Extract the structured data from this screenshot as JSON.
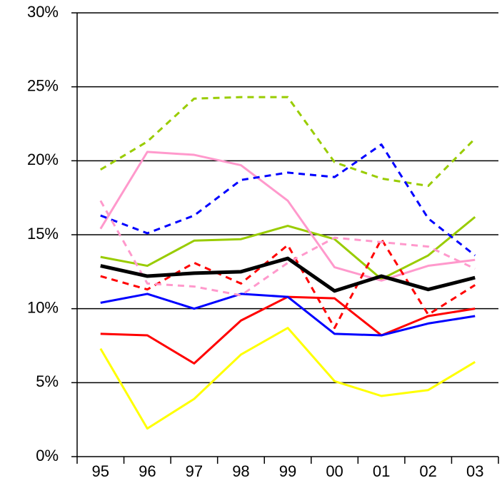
{
  "chart_data": {
    "type": "line",
    "categories": [
      "95",
      "96",
      "97",
      "98",
      "99",
      "00",
      "01",
      "02",
      "03"
    ],
    "ylim": [
      0,
      30
    ],
    "yticks": [
      {
        "value": 0,
        "label": "0%"
      },
      {
        "value": 5,
        "label": "5%"
      },
      {
        "value": 10,
        "label": "10%"
      },
      {
        "value": 15,
        "label": "15%"
      },
      {
        "value": 20,
        "label": "20%"
      },
      {
        "value": 25,
        "label": "25%"
      },
      {
        "value": 30,
        "label": "30%"
      }
    ],
    "grid": true,
    "series": [
      {
        "color": "#ffff00",
        "style": "solid",
        "width": 3,
        "values": [
          7.3,
          1.9,
          3.9,
          6.9,
          8.7,
          5.1,
          4.1,
          4.5,
          6.4
        ]
      },
      {
        "color": "#ff0000",
        "style": "solid",
        "width": 3,
        "values": [
          8.3,
          8.2,
          6.3,
          9.2,
          10.8,
          10.7,
          8.2,
          9.5,
          10.0
        ]
      },
      {
        "color": "#0000ff",
        "style": "solid",
        "width": 3,
        "values": [
          10.4,
          11.0,
          10.0,
          11.0,
          10.8,
          8.3,
          8.2,
          9.0,
          9.5
        ]
      },
      {
        "color": "#99cc00",
        "style": "solid",
        "width": 3,
        "values": [
          13.5,
          12.9,
          14.6,
          14.7,
          15.6,
          14.7,
          12.0,
          13.6,
          16.2
        ]
      },
      {
        "color": "#ff99cc",
        "style": "solid",
        "width": 3,
        "values": [
          15.4,
          20.6,
          20.4,
          19.7,
          17.3,
          12.8,
          11.9,
          12.9,
          13.3
        ]
      },
      {
        "color": "#99cc00",
        "style": "dashed",
        "width": 3,
        "values": [
          19.4,
          21.3,
          24.2,
          24.3,
          24.3,
          19.9,
          18.8,
          18.3,
          21.5
        ]
      },
      {
        "color": "#0000ff",
        "style": "dashed",
        "width": 3,
        "values": [
          16.3,
          15.1,
          16.3,
          18.7,
          19.2,
          18.9,
          21.1,
          16.1,
          13.6
        ]
      },
      {
        "color": "#ff0000",
        "style": "dashed",
        "width": 3,
        "values": [
          12.2,
          11.3,
          13.1,
          11.7,
          14.3,
          8.7,
          14.7,
          9.6,
          11.6
        ]
      },
      {
        "color": "#ff99cc",
        "style": "dashed",
        "width": 3,
        "values": [
          17.3,
          11.7,
          11.5,
          10.9,
          13.1,
          14.8,
          14.5,
          14.2,
          12.7
        ]
      },
      {
        "color": "#000000",
        "style": "solid",
        "width": 5,
        "values": [
          12.9,
          12.2,
          12.4,
          12.5,
          13.4,
          11.2,
          12.2,
          11.3,
          12.1
        ]
      }
    ]
  }
}
